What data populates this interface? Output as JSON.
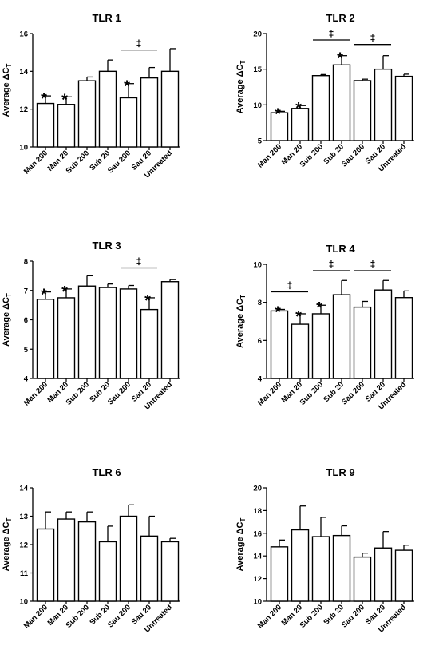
{
  "figure": {
    "y_axis_label": "Average ΔC",
    "y_axis_label_sub": "T",
    "star_symbol": "*",
    "dagger_symbol": "‡"
  },
  "chart_data": [
    {
      "type": "bar",
      "title": "TLR 1",
      "ylabel": "Average ΔCT",
      "categories": [
        "Man 200",
        "Man 20",
        "Sub 200",
        "Sub 20",
        "Sau 200",
        "Sau 20",
        "Untreated"
      ],
      "values": [
        12.3,
        12.25,
        13.5,
        14.0,
        12.6,
        13.65,
        14.0
      ],
      "errors": [
        0.4,
        0.4,
        0.2,
        0.6,
        0.75,
        0.55,
        1.2
      ],
      "ylim": [
        10,
        16
      ],
      "yticks": [
        10,
        12,
        14,
        16
      ],
      "significant": [
        0,
        1,
        4
      ],
      "brackets": [
        [
          4,
          5
        ]
      ]
    },
    {
      "type": "bar",
      "title": "TLR 2",
      "ylabel": "Average ΔCT",
      "categories": [
        "Man 200",
        "Man 20",
        "Sub 200",
        "Sub 20",
        "Sau 200",
        "Sau 20",
        "Untreated"
      ],
      "values": [
        8.9,
        9.5,
        14.1,
        15.6,
        13.4,
        15.0,
        14.0
      ],
      "errors": [
        0.2,
        0.4,
        0.15,
        1.3,
        0.2,
        1.9,
        0.3
      ],
      "ylim": [
        5,
        20
      ],
      "yticks": [
        5,
        10,
        15,
        20
      ],
      "significant": [
        0,
        1,
        3
      ],
      "brackets": [
        [
          2,
          3
        ],
        [
          4,
          5
        ]
      ]
    },
    {
      "type": "bar",
      "title": "TLR 3",
      "ylabel": "Average ΔCT",
      "categories": [
        "Man 200",
        "Man 20",
        "Sub 200",
        "Sub 20",
        "Sau 200",
        "Sau 20",
        "Untreated"
      ],
      "values": [
        6.7,
        6.75,
        7.15,
        7.1,
        7.05,
        6.35,
        7.3
      ],
      "errors": [
        0.25,
        0.3,
        0.35,
        0.12,
        0.12,
        0.4,
        0.07
      ],
      "ylim": [
        4,
        8
      ],
      "yticks": [
        4,
        5,
        6,
        7,
        8
      ],
      "significant": [
        0,
        1,
        5
      ],
      "brackets": [
        [
          4,
          5
        ]
      ]
    },
    {
      "type": "bar",
      "title": "TLR 4",
      "ylabel": "Average ΔCT",
      "categories": [
        "Man 200",
        "Man 20",
        "Sub 200",
        "Sub 20",
        "Sau 200",
        "Sau 20",
        "Untreated"
      ],
      "values": [
        7.55,
        6.85,
        7.4,
        8.4,
        7.75,
        8.65,
        8.25
      ],
      "errors": [
        0.08,
        0.55,
        0.45,
        0.75,
        0.3,
        0.5,
        0.35
      ],
      "ylim": [
        4,
        10
      ],
      "yticks": [
        4,
        6,
        8,
        10
      ],
      "significant": [
        0,
        1,
        2
      ],
      "brackets": [
        [
          0,
          1
        ],
        [
          2,
          3
        ],
        [
          4,
          5
        ]
      ]
    },
    {
      "type": "bar",
      "title": "TLR 6",
      "ylabel": "Average ΔCT",
      "categories": [
        "Man 200",
        "Man 20",
        "Sub 200",
        "Sub 20",
        "Sau 200",
        "Sau 20",
        "Untreated"
      ],
      "values": [
        12.55,
        12.9,
        12.8,
        12.1,
        13.0,
        12.3,
        12.1
      ],
      "errors": [
        0.6,
        0.25,
        0.35,
        0.55,
        0.4,
        0.7,
        0.12
      ],
      "ylim": [
        10,
        14
      ],
      "yticks": [
        10,
        11,
        12,
        13,
        14
      ],
      "significant": [],
      "brackets": []
    },
    {
      "type": "bar",
      "title": "TLR 9",
      "ylabel": "Average ΔCT",
      "categories": [
        "Man 200",
        "Man 20",
        "Sub 200",
        "Sub 20",
        "Sau 200",
        "Sau 20",
        "Untreated"
      ],
      "values": [
        14.8,
        16.3,
        15.7,
        15.8,
        13.9,
        14.7,
        14.5
      ],
      "errors": [
        0.6,
        2.1,
        1.7,
        0.85,
        0.35,
        1.45,
        0.45
      ],
      "ylim": [
        10,
        20
      ],
      "yticks": [
        10,
        12,
        14,
        16,
        18,
        20
      ],
      "significant": [],
      "brackets": []
    }
  ]
}
